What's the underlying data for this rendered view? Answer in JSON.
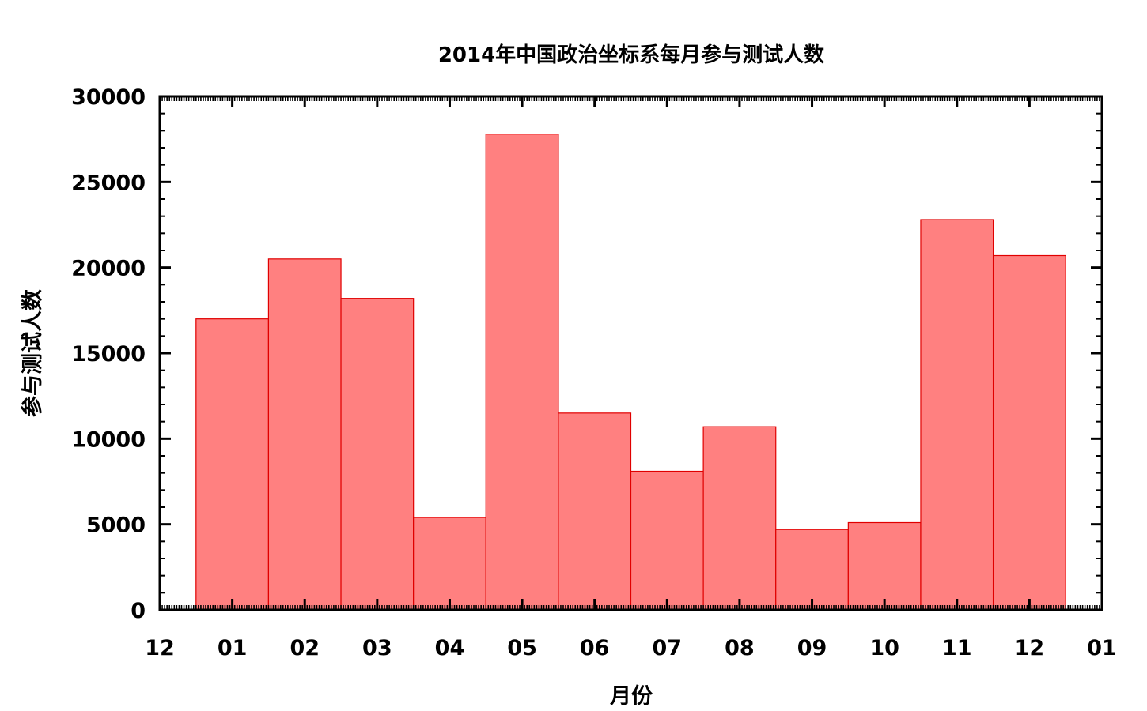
{
  "chart_data": {
    "type": "bar",
    "title": "2014年中国政治坐标系每月参与测试人数",
    "xlabel": "月份",
    "ylabel": "参与测试人数",
    "x_ticks": [
      "12",
      "01",
      "02",
      "03",
      "04",
      "05",
      "06",
      "07",
      "08",
      "09",
      "10",
      "11",
      "12",
      "01"
    ],
    "categories": [
      "01",
      "02",
      "03",
      "04",
      "05",
      "06",
      "07",
      "08",
      "09",
      "10",
      "11",
      "12"
    ],
    "values": [
      17000,
      20500,
      18200,
      5400,
      27800,
      11500,
      8100,
      10700,
      4700,
      5100,
      22800,
      20700
    ],
    "ylim": [
      0,
      30000
    ],
    "y_ticks": [
      0,
      5000,
      10000,
      15000,
      20000,
      25000,
      30000
    ],
    "grid": false,
    "colors": {
      "bar_fill": "#ff8080",
      "bar_stroke": "#e00000",
      "axis": "#000000"
    }
  }
}
